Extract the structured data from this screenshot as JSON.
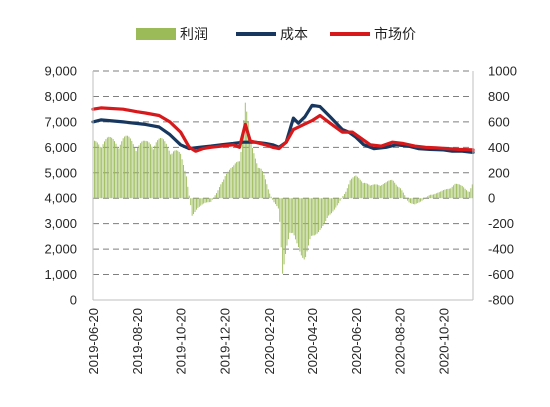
{
  "chart_data": {
    "type": "combo",
    "title": "",
    "legend": {
      "position": "top",
      "entries": [
        {
          "label": "利润",
          "kind": "bar",
          "color": "#9bbb59"
        },
        {
          "label": "成本",
          "kind": "line",
          "color": "#17375e"
        },
        {
          "label": "市场价",
          "kind": "line",
          "color": "#d7191c"
        }
      ]
    },
    "left_axis": {
      "min": 0,
      "max": 9000,
      "step": 1000,
      "tick_labels": [
        "0",
        "1,000",
        "2,000",
        "3,000",
        "4,000",
        "5,000",
        "6,000",
        "7,000",
        "8,000",
        "9,000"
      ]
    },
    "right_axis": {
      "min": -800,
      "max": 1000,
      "step": 200,
      "tick_labels": [
        "-800",
        "-600",
        "-400",
        "-200",
        "0",
        "200",
        "400",
        "600",
        "800",
        "1000"
      ]
    },
    "x_axis": {
      "start": "2019-06-20",
      "end": "2020-11-30",
      "tick_labels": [
        "2019-06-20",
        "2019-08-20",
        "2019-10-20",
        "2019-12-20",
        "2020-02-20",
        "2020-04-20",
        "2020-06-20",
        "2020-08-20",
        "2020-10-20"
      ]
    },
    "grid": {
      "horizontal": "dashed",
      "vertical": false
    },
    "series": [
      {
        "name": "成本",
        "axis": "left",
        "type": "line",
        "color": "#17375e",
        "points": [
          [
            "2019-06-20",
            7000
          ],
          [
            "2019-07-01",
            7080
          ],
          [
            "2019-08-01",
            7000
          ],
          [
            "2019-09-01",
            6900
          ],
          [
            "2019-09-20",
            6800
          ],
          [
            "2019-10-05",
            6500
          ],
          [
            "2019-10-20",
            6100
          ],
          [
            "2019-11-01",
            5950
          ],
          [
            "2019-11-15",
            6000
          ],
          [
            "2019-12-01",
            6050
          ],
          [
            "2019-12-15",
            6100
          ],
          [
            "2020-01-01",
            6150
          ],
          [
            "2020-01-15",
            6200
          ],
          [
            "2020-02-01",
            6200
          ],
          [
            "2020-02-15",
            6150
          ],
          [
            "2020-02-25",
            6100
          ],
          [
            "2020-03-05",
            6000
          ],
          [
            "2020-03-15",
            6200
          ],
          [
            "2020-03-25",
            7150
          ],
          [
            "2020-04-01",
            6950
          ],
          [
            "2020-04-10",
            7200
          ],
          [
            "2020-04-20",
            7650
          ],
          [
            "2020-05-01",
            7600
          ],
          [
            "2020-05-15",
            7200
          ],
          [
            "2020-06-01",
            6700
          ],
          [
            "2020-06-10",
            6600
          ],
          [
            "2020-06-20",
            6400
          ],
          [
            "2020-07-01",
            6100
          ],
          [
            "2020-07-15",
            5950
          ],
          [
            "2020-08-01",
            6000
          ],
          [
            "2020-08-15",
            6100
          ],
          [
            "2020-09-01",
            6050
          ],
          [
            "2020-09-15",
            5950
          ],
          [
            "2020-10-01",
            5920
          ],
          [
            "2020-10-20",
            5900
          ],
          [
            "2020-11-01",
            5850
          ],
          [
            "2020-11-15",
            5850
          ],
          [
            "2020-11-30",
            5800
          ]
        ]
      },
      {
        "name": "市场价",
        "axis": "left",
        "type": "line",
        "color": "#d7191c",
        "points": [
          [
            "2019-06-20",
            7500
          ],
          [
            "2019-07-01",
            7550
          ],
          [
            "2019-08-01",
            7500
          ],
          [
            "2019-08-20",
            7400
          ],
          [
            "2019-09-01",
            7350
          ],
          [
            "2019-09-20",
            7250
          ],
          [
            "2019-10-05",
            7000
          ],
          [
            "2019-10-20",
            6600
          ],
          [
            "2019-11-01",
            6000
          ],
          [
            "2019-11-10",
            5850
          ],
          [
            "2019-11-20",
            5950
          ],
          [
            "2019-12-01",
            6000
          ],
          [
            "2019-12-15",
            6050
          ],
          [
            "2020-01-01",
            6100
          ],
          [
            "2020-01-10",
            6000
          ],
          [
            "2020-01-18",
            6900
          ],
          [
            "2020-01-25",
            6250
          ],
          [
            "2020-02-01",
            6200
          ],
          [
            "2020-02-15",
            6100
          ],
          [
            "2020-02-25",
            6000
          ],
          [
            "2020-03-05",
            5950
          ],
          [
            "2020-03-15",
            6200
          ],
          [
            "2020-03-25",
            6700
          ],
          [
            "2020-04-05",
            6850
          ],
          [
            "2020-04-20",
            7050
          ],
          [
            "2020-05-01",
            7250
          ],
          [
            "2020-05-15",
            6950
          ],
          [
            "2020-06-01",
            6600
          ],
          [
            "2020-06-15",
            6600
          ],
          [
            "2020-06-25",
            6400
          ],
          [
            "2020-07-10",
            6100
          ],
          [
            "2020-07-25",
            6050
          ],
          [
            "2020-08-10",
            6200
          ],
          [
            "2020-08-25",
            6150
          ],
          [
            "2020-09-10",
            6050
          ],
          [
            "2020-09-25",
            6000
          ],
          [
            "2020-10-10",
            5980
          ],
          [
            "2020-10-25",
            5950
          ],
          [
            "2020-11-10",
            5920
          ],
          [
            "2020-11-30",
            5900
          ]
        ]
      },
      {
        "name": "利润",
        "axis": "right",
        "type": "bar",
        "color": "#9bbb59",
        "points": [
          [
            "2019-06-20",
            450
          ],
          [
            "2019-07-01",
            500
          ],
          [
            "2019-07-15",
            480
          ],
          [
            "2019-08-01",
            500
          ],
          [
            "2019-08-15",
            480
          ],
          [
            "2019-09-01",
            450
          ],
          [
            "2019-09-15",
            500
          ],
          [
            "2019-10-01",
            450
          ],
          [
            "2019-10-10",
            420
          ],
          [
            "2019-10-20",
            350
          ],
          [
            "2019-10-28",
            200
          ],
          [
            "2019-11-05",
            -150
          ],
          [
            "2019-11-12",
            -80
          ],
          [
            "2019-11-20",
            -50
          ],
          [
            "2019-12-01",
            -30
          ],
          [
            "2019-12-10",
            50
          ],
          [
            "2019-12-20",
            200
          ],
          [
            "2020-01-01",
            250
          ],
          [
            "2020-01-10",
            350
          ],
          [
            "2020-01-18",
            800
          ],
          [
            "2020-01-25",
            450
          ],
          [
            "2020-02-01",
            350
          ],
          [
            "2020-02-10",
            250
          ],
          [
            "2020-02-20",
            50
          ],
          [
            "2020-02-28",
            -50
          ],
          [
            "2020-03-05",
            -100
          ],
          [
            "2020-03-10",
            -600
          ],
          [
            "2020-03-15",
            -400
          ],
          [
            "2020-03-20",
            -300
          ],
          [
            "2020-03-25",
            -350
          ],
          [
            "2020-04-01",
            -400
          ],
          [
            "2020-04-05",
            -450
          ],
          [
            "2020-04-10",
            -500
          ],
          [
            "2020-04-15",
            -430
          ],
          [
            "2020-04-20",
            -350
          ],
          [
            "2020-04-25",
            -300
          ],
          [
            "2020-05-01",
            -250
          ],
          [
            "2020-05-10",
            -200
          ],
          [
            "2020-05-20",
            -100
          ],
          [
            "2020-05-28",
            -30
          ],
          [
            "2020-06-05",
            50
          ],
          [
            "2020-06-12",
            150
          ],
          [
            "2020-06-20",
            180
          ],
          [
            "2020-07-01",
            150
          ],
          [
            "2020-07-10",
            100
          ],
          [
            "2020-07-20",
            120
          ],
          [
            "2020-08-01",
            130
          ],
          [
            "2020-08-10",
            150
          ],
          [
            "2020-08-20",
            100
          ],
          [
            "2020-09-01",
            -30
          ],
          [
            "2020-09-10",
            -60
          ],
          [
            "2020-09-20",
            -20
          ],
          [
            "2020-10-01",
            30
          ],
          [
            "2020-10-15",
            50
          ],
          [
            "2020-10-25",
            80
          ],
          [
            "2020-11-05",
            120
          ],
          [
            "2020-11-15",
            100
          ],
          [
            "2020-11-25",
            60
          ],
          [
            "2020-11-30",
            130
          ]
        ]
      }
    ]
  }
}
